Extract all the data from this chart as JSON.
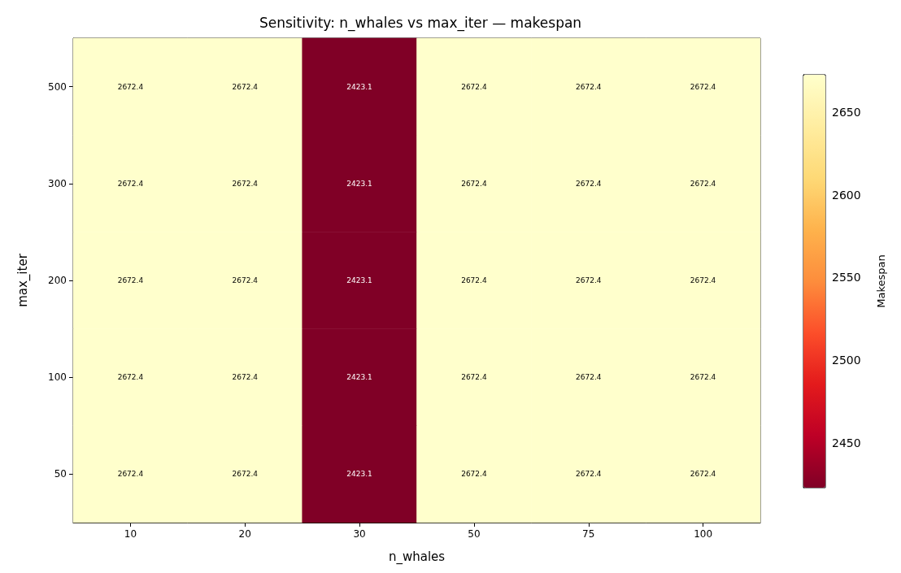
{
  "chart_data": {
    "type": "heatmap",
    "title": "Sensitivity: n_whales vs max_iter — makespan",
    "xlabel": "n_whales",
    "ylabel": "max_iter",
    "clabel": "Makespan",
    "categories": [
      "10",
      "20",
      "30",
      "50",
      "75",
      "100"
    ],
    "y_categories": [
      "500",
      "300",
      "200",
      "100",
      "50"
    ],
    "cells": [
      [
        2672.4,
        2672.4,
        2423.1,
        2672.4,
        2672.4,
        2672.4
      ],
      [
        2672.4,
        2672.4,
        2423.1,
        2672.4,
        2672.4,
        2672.4
      ],
      [
        2672.4,
        2672.4,
        2423.1,
        2672.4,
        2672.4,
        2672.4
      ],
      [
        2672.4,
        2672.4,
        2423.1,
        2672.4,
        2672.4,
        2672.4
      ],
      [
        2672.4,
        2672.4,
        2423.1,
        2672.4,
        2672.4,
        2672.4
      ]
    ],
    "clim": [
      2423.1,
      2672.4
    ],
    "cticks": [
      2450,
      2500,
      2550,
      2600,
      2650
    ],
    "data_labels": true
  }
}
